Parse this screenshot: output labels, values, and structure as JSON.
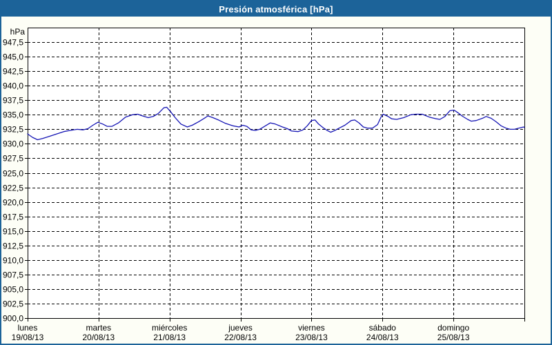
{
  "window": {
    "title": "Presión atmosférica [hPa]"
  },
  "colors": {
    "title_bar_bg": "#1c6399",
    "window_border": "#1c6399",
    "content_bg": "#fdfef6",
    "plot_bg": "#ffffff",
    "grid_color": "#000000",
    "line_color": "#1414b4"
  },
  "chart_data": {
    "type": "line",
    "title": "Presión atmosférica [hPa]",
    "unit_label": "hPa",
    "xlabel": "",
    "ylabel": "hPa",
    "ylim": [
      900,
      950
    ],
    "ytick_step": 2.5,
    "grid": "dashed",
    "legend_position": "none",
    "yticks": [
      {
        "v": 947.5,
        "label": "947,5"
      },
      {
        "v": 945.0,
        "label": "945,0"
      },
      {
        "v": 942.5,
        "label": "942,5"
      },
      {
        "v": 940.0,
        "label": "940,0"
      },
      {
        "v": 937.5,
        "label": "937,5"
      },
      {
        "v": 935.0,
        "label": "935,0"
      },
      {
        "v": 932.5,
        "label": "932,5"
      },
      {
        "v": 930.0,
        "label": "930,0"
      },
      {
        "v": 927.5,
        "label": "927,5"
      },
      {
        "v": 925.0,
        "label": "925,0"
      },
      {
        "v": 922.5,
        "label": "922,5"
      },
      {
        "v": 920.0,
        "label": "920,0"
      },
      {
        "v": 917.5,
        "label": "917,5"
      },
      {
        "v": 915.0,
        "label": "915,0"
      },
      {
        "v": 912.5,
        "label": "912,5"
      },
      {
        "v": 910.0,
        "label": "910,0"
      },
      {
        "v": 907.5,
        "label": "907,5"
      },
      {
        "v": 905.0,
        "label": "905,0"
      },
      {
        "v": 902.5,
        "label": "902,5"
      },
      {
        "v": 900.0,
        "label": "900,0"
      }
    ],
    "x_axis": {
      "days": [
        {
          "name": "lunes",
          "date": "19/08/13"
        },
        {
          "name": "martes",
          "date": "20/08/13"
        },
        {
          "name": "miércoles",
          "date": "21/08/13"
        },
        {
          "name": "jueves",
          "date": "22/08/13"
        },
        {
          "name": "viernes",
          "date": "23/08/13"
        },
        {
          "name": "sábado",
          "date": "24/08/13"
        },
        {
          "name": "domingo",
          "date": "25/08/13"
        }
      ],
      "span_days": 7
    },
    "series": [
      {
        "points": [
          [
            0.0,
            931.7
          ],
          [
            0.07,
            931.1
          ],
          [
            0.14,
            930.7
          ],
          [
            0.21,
            930.9
          ],
          [
            0.31,
            931.3
          ],
          [
            0.41,
            931.7
          ],
          [
            0.51,
            932.1
          ],
          [
            0.6,
            932.3
          ],
          [
            0.7,
            932.5
          ],
          [
            0.78,
            932.4
          ],
          [
            0.85,
            932.6
          ],
          [
            0.92,
            933.2
          ],
          [
            0.99,
            933.7
          ],
          [
            1.06,
            933.4
          ],
          [
            1.12,
            933.0
          ],
          [
            1.19,
            933.0
          ],
          [
            1.28,
            933.6
          ],
          [
            1.38,
            934.6
          ],
          [
            1.48,
            935.0
          ],
          [
            1.55,
            935.1
          ],
          [
            1.62,
            934.8
          ],
          [
            1.7,
            934.5
          ],
          [
            1.77,
            934.7
          ],
          [
            1.84,
            935.2
          ],
          [
            1.92,
            936.2
          ],
          [
            1.96,
            936.3
          ],
          [
            2.01,
            935.6
          ],
          [
            2.08,
            934.5
          ],
          [
            2.16,
            933.4
          ],
          [
            2.25,
            932.9
          ],
          [
            2.32,
            933.2
          ],
          [
            2.41,
            933.8
          ],
          [
            2.49,
            934.4
          ],
          [
            2.54,
            934.8
          ],
          [
            2.61,
            934.5
          ],
          [
            2.69,
            934.1
          ],
          [
            2.79,
            933.5
          ],
          [
            2.89,
            933.1
          ],
          [
            2.98,
            932.9
          ],
          [
            3.03,
            933.2
          ],
          [
            3.09,
            933.0
          ],
          [
            3.15,
            932.4
          ],
          [
            3.21,
            932.3
          ],
          [
            3.27,
            932.5
          ],
          [
            3.34,
            933.0
          ],
          [
            3.42,
            933.6
          ],
          [
            3.49,
            933.4
          ],
          [
            3.59,
            932.9
          ],
          [
            3.66,
            932.6
          ],
          [
            3.72,
            932.2
          ],
          [
            3.81,
            932.1
          ],
          [
            3.88,
            932.4
          ],
          [
            3.94,
            933.1
          ],
          [
            4.0,
            934.0
          ],
          [
            4.05,
            934.1
          ],
          [
            4.1,
            933.4
          ],
          [
            4.16,
            932.8
          ],
          [
            4.22,
            932.3
          ],
          [
            4.27,
            932.0
          ],
          [
            4.33,
            932.3
          ],
          [
            4.39,
            932.7
          ],
          [
            4.47,
            933.2
          ],
          [
            4.56,
            934.0
          ],
          [
            4.61,
            934.1
          ],
          [
            4.67,
            933.6
          ],
          [
            4.73,
            932.9
          ],
          [
            4.79,
            932.7
          ],
          [
            4.86,
            932.7
          ],
          [
            4.93,
            933.3
          ],
          [
            4.98,
            934.6
          ],
          [
            5.01,
            935.1
          ],
          [
            5.08,
            934.7
          ],
          [
            5.13,
            934.3
          ],
          [
            5.2,
            934.2
          ],
          [
            5.3,
            934.5
          ],
          [
            5.4,
            935.0
          ],
          [
            5.47,
            935.1
          ],
          [
            5.56,
            935.1
          ],
          [
            5.66,
            934.6
          ],
          [
            5.76,
            934.3
          ],
          [
            5.81,
            934.2
          ],
          [
            5.88,
            934.7
          ],
          [
            5.95,
            935.7
          ],
          [
            6.01,
            935.8
          ],
          [
            6.07,
            935.3
          ],
          [
            6.12,
            934.8
          ],
          [
            6.2,
            934.2
          ],
          [
            6.25,
            933.9
          ],
          [
            6.32,
            934.0
          ],
          [
            6.41,
            934.4
          ],
          [
            6.46,
            934.7
          ],
          [
            6.53,
            934.4
          ],
          [
            6.6,
            933.8
          ],
          [
            6.67,
            933.1
          ],
          [
            6.74,
            932.7
          ],
          [
            6.8,
            932.5
          ],
          [
            6.86,
            932.5
          ],
          [
            6.92,
            932.7
          ],
          [
            6.99,
            932.9
          ],
          [
            7.0,
            932.8
          ]
        ]
      }
    ]
  }
}
